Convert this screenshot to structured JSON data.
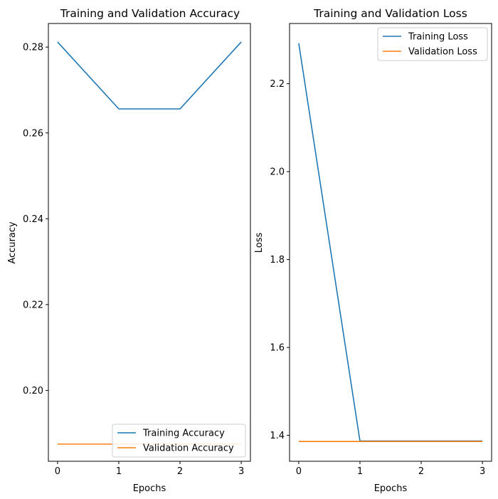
{
  "colors": {
    "training": "#1f77b4",
    "validation": "#ff7f0e"
  },
  "chart_data": [
    {
      "type": "line",
      "title": "Training and Validation Accuracy",
      "xlabel": "Epochs",
      "ylabel": "Accuracy",
      "x": [
        0,
        1,
        2,
        3
      ],
      "xticks": [
        "0",
        "1",
        "2",
        "3"
      ],
      "yticks": [
        "0.20",
        "0.22",
        "0.24",
        "0.26",
        "0.28"
      ],
      "xlim": [
        -0.15,
        3.15
      ],
      "ylim": [
        0.1835,
        0.2855
      ],
      "grid": false,
      "legend_position": "lower-right",
      "series": [
        {
          "name": "Training Accuracy",
          "values": [
            0.2812,
            0.2656,
            0.2656,
            0.2812
          ]
        },
        {
          "name": "Validation Accuracy",
          "values": [
            0.1875,
            0.1875,
            0.1875,
            0.1875
          ]
        }
      ]
    },
    {
      "type": "line",
      "title": "Training and Validation Loss",
      "xlabel": "Epochs",
      "ylabel": "Loss",
      "x": [
        0,
        1,
        2,
        3
      ],
      "xticks": [
        "0",
        "1",
        "2",
        "3"
      ],
      "yticks": [
        "1.4",
        "1.6",
        "1.8",
        "2.0",
        "2.2"
      ],
      "xlim": [
        -0.15,
        3.15
      ],
      "ylim": [
        1.341,
        2.337
      ],
      "grid": false,
      "legend_position": "upper-right",
      "series": [
        {
          "name": "Training Loss",
          "values": [
            2.292,
            1.387,
            1.387,
            1.387
          ]
        },
        {
          "name": "Validation Loss",
          "values": [
            1.386,
            1.386,
            1.386,
            1.386
          ]
        }
      ]
    }
  ]
}
